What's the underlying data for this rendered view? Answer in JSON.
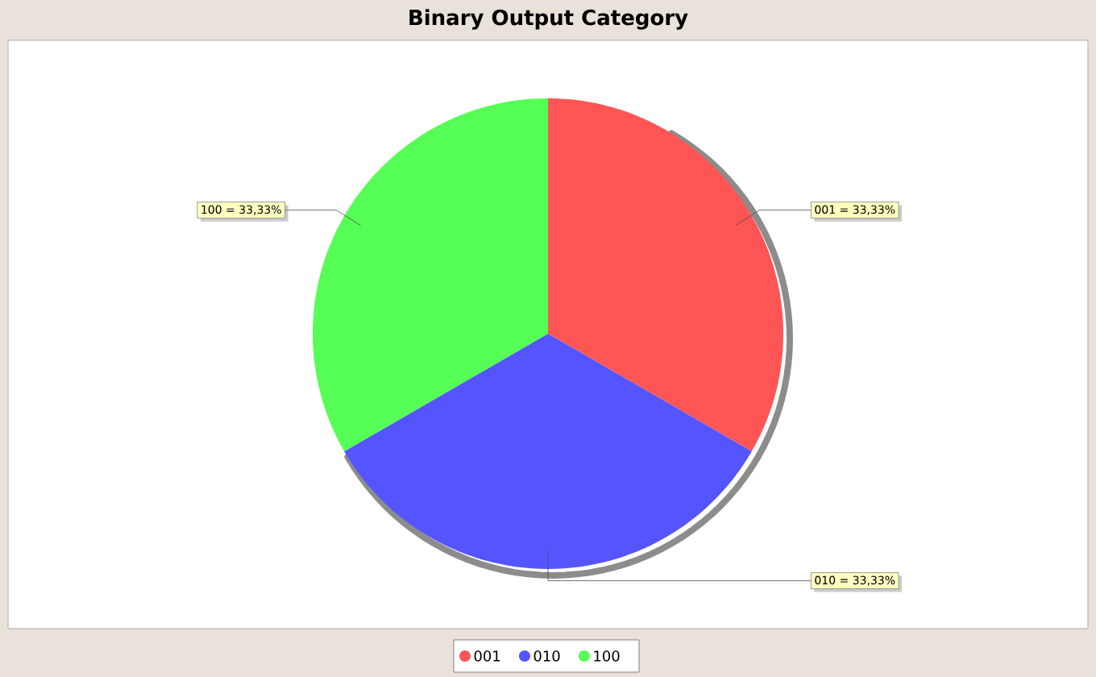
{
  "chart_data": {
    "type": "pie",
    "title": "Binary Output Category",
    "categories": [
      "001",
      "010",
      "100"
    ],
    "values": [
      33.33,
      33.33,
      33.33
    ],
    "colors": [
      "#ff5555",
      "#5555ff",
      "#55ff55"
    ],
    "value_labels": [
      "001 = 33,33%",
      "010 = 33,33%",
      "100 = 33,33%"
    ],
    "legend": "bottom"
  }
}
